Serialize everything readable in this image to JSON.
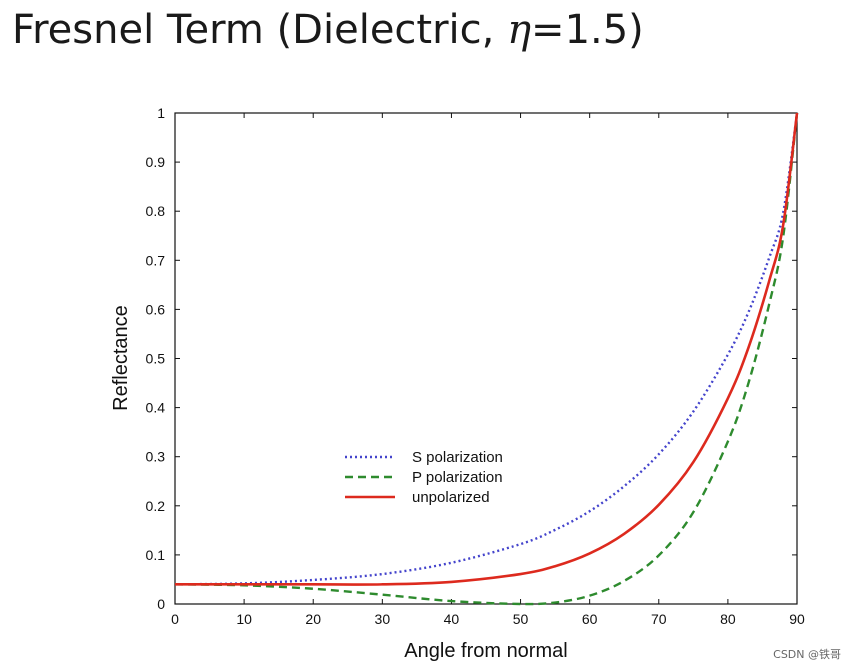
{
  "page": {
    "title_prefix": "Fresnel Term (Dielectric, ",
    "title_symbol": "η",
    "title_suffix": "=1.5)",
    "watermark": "CSDN @铁哥"
  },
  "chart_data": {
    "type": "line",
    "title": "Fresnel Term (Dielectric, η=1.5)",
    "xlabel": "Angle from normal",
    "ylabel": "Reflectance",
    "xlim": [
      0,
      90
    ],
    "ylim": [
      0,
      1
    ],
    "xticks": [
      0,
      10,
      20,
      30,
      40,
      50,
      60,
      70,
      80,
      90
    ],
    "yticks": [
      0,
      0.1,
      0.2,
      0.3,
      0.4,
      0.5,
      0.6,
      0.7,
      0.8,
      0.9,
      1
    ],
    "ytick_labels": [
      "0",
      "0.1",
      "0.2",
      "0.3",
      "0.4",
      "0.5",
      "0.6",
      "0.7",
      "0.8",
      "0.9",
      "1"
    ],
    "grid": false,
    "legend_position": "center-left",
    "x": [
      0,
      10,
      20,
      30,
      40,
      50,
      55,
      60,
      65,
      70,
      75,
      80,
      83,
      86,
      88,
      90
    ],
    "series": [
      {
        "name": "S polarization",
        "color": "#4444cc",
        "style": "dotted",
        "values": [
          0.04,
          0.042,
          0.049,
          0.061,
          0.084,
          0.122,
          0.151,
          0.189,
          0.24,
          0.305,
          0.392,
          0.508,
          0.595,
          0.706,
          0.797,
          1.0
        ]
      },
      {
        "name": "P polarization",
        "color": "#2e8b2e",
        "style": "dashed",
        "values": [
          0.04,
          0.038,
          0.031,
          0.019,
          0.006,
          0.0,
          0.003,
          0.017,
          0.047,
          0.099,
          0.187,
          0.331,
          0.451,
          0.612,
          0.748,
          1.0
        ]
      },
      {
        "name": "unpolarized",
        "color": "#dd2a1e",
        "style": "solid",
        "values": [
          0.04,
          0.04,
          0.04,
          0.04,
          0.045,
          0.061,
          0.077,
          0.103,
          0.143,
          0.202,
          0.289,
          0.419,
          0.523,
          0.659,
          0.772,
          1.0
        ]
      }
    ]
  }
}
